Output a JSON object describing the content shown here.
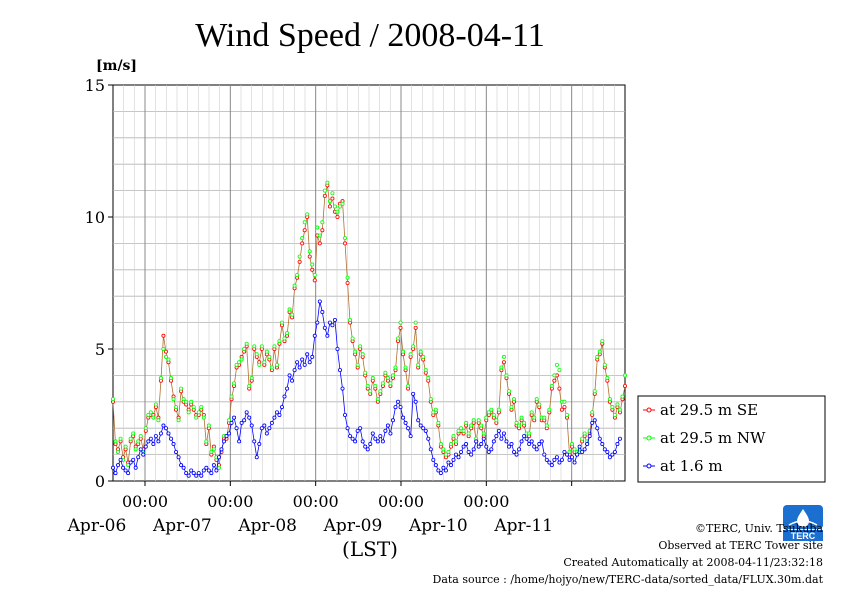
{
  "chart_data": {
    "type": "line",
    "title": "Wind Speed / 2008-04-11",
    "ylabel": "[m/s]",
    "xlabel": "(LST)",
    "ylim": [
      0,
      15
    ],
    "yticks": [
      0,
      5,
      10,
      15
    ],
    "xlim_hours": [
      0,
      144
    ],
    "x_midnight_tick_label": "00:00",
    "day_labels": [
      "Apr-06",
      "Apr-07",
      "Apr-08",
      "Apr-09",
      "Apr-10",
      "Apr-11"
    ],
    "x_unit_note": "x values are hours since start of plotted period (first point shown)",
    "grid": true,
    "legend_position": "right",
    "series": [
      {
        "name": "at 29.5 m SE",
        "color": "#ff0000",
        "values": [
          3.0,
          1.4,
          1.2,
          1.5,
          0.9,
          1.2,
          0.7,
          1.5,
          1.7,
          1.3,
          1.4,
          1.6,
          1.2,
          1.9,
          2.4,
          2.5,
          2.5,
          2.8,
          2.4,
          3.8,
          5.5,
          4.9,
          4.5,
          3.8,
          3.2,
          2.7,
          2.4,
          3.4,
          3.0,
          2.9,
          2.7,
          2.9,
          2.7,
          2.5,
          2.5,
          2.7,
          2.5,
          1.4,
          2.0,
          1.0,
          1.3,
          0.8,
          0.6,
          1.1,
          1.6,
          1.6,
          2.2,
          3.1,
          3.6,
          4.3,
          4.4,
          4.7,
          4.9,
          5.1,
          3.5,
          3.8,
          5.0,
          4.7,
          4.5,
          5.0,
          4.4,
          4.8,
          4.6,
          4.2,
          5.0,
          4.3,
          5.2,
          5.9,
          5.3,
          5.5,
          6.4,
          6.2,
          7.3,
          7.7,
          8.3,
          9.0,
          9.5,
          10.0,
          8.5,
          8.0,
          7.6,
          9.3,
          9.0,
          9.5,
          10.8,
          11.2,
          10.4,
          10.7,
          10.2,
          10.0,
          10.5,
          10.6,
          9.0,
          7.5,
          6.0,
          5.3,
          4.8,
          4.3,
          5.0,
          4.7,
          4.0,
          3.5,
          3.3,
          3.8,
          3.5,
          3.0,
          3.3,
          3.6,
          4.0,
          3.8,
          3.6,
          3.9,
          4.2,
          5.3,
          5.8,
          4.8,
          4.2,
          3.5,
          4.7,
          5.0,
          5.8,
          4.3,
          4.8,
          4.6,
          4.1,
          3.8,
          3.0,
          2.5,
          2.6,
          2.1,
          1.3,
          1.1,
          0.9,
          1.0,
          1.3,
          1.6,
          1.4,
          1.8,
          1.9,
          1.8,
          2.1,
          1.7,
          2.0,
          2.2,
          1.5,
          2.2,
          2.0,
          1.7,
          2.3,
          2.5,
          2.6,
          2.4,
          2.2,
          2.6,
          4.2,
          4.5,
          3.9,
          3.3,
          2.7,
          3.0,
          2.1,
          2.0,
          2.3,
          2.1,
          1.7,
          1.7,
          2.5,
          2.3,
          3.0,
          2.8,
          2.3,
          2.3,
          2.0,
          2.6,
          3.5,
          3.8,
          4.0,
          3.5,
          2.7,
          2.8,
          2.4,
          1.0,
          1.3,
          1.1,
          1.0,
          1.1,
          1.5,
          1.7,
          1.4,
          1.8,
          2.5,
          3.3,
          4.6,
          4.8,
          5.2,
          4.3,
          3.8,
          3.0,
          2.7,
          2.4,
          2.8,
          2.6,
          3.1,
          3.6
        ]
      },
      {
        "name": "at 29.5 m NW",
        "color": "#00ff00",
        "values": [
          3.1,
          1.5,
          1.1,
          1.6,
          0.8,
          1.3,
          0.6,
          1.6,
          1.8,
          1.2,
          1.5,
          1.7,
          1.1,
          2.0,
          2.5,
          2.6,
          2.4,
          2.9,
          2.3,
          3.9,
          5.0,
          4.7,
          4.6,
          3.9,
          3.1,
          2.8,
          2.3,
          3.5,
          3.1,
          3.0,
          2.6,
          3.0,
          2.8,
          2.4,
          2.6,
          2.8,
          2.4,
          1.5,
          2.1,
          1.1,
          1.2,
          0.9,
          0.5,
          1.2,
          1.7,
          1.7,
          2.3,
          3.2,
          3.7,
          4.4,
          4.5,
          4.6,
          5.0,
          5.2,
          3.6,
          3.9,
          5.1,
          4.8,
          4.4,
          5.1,
          4.5,
          4.9,
          4.7,
          4.3,
          5.1,
          4.4,
          5.3,
          6.0,
          5.4,
          5.6,
          6.5,
          6.3,
          7.4,
          7.8,
          8.5,
          9.2,
          9.8,
          10.1,
          8.7,
          8.2,
          7.8,
          9.6,
          9.3,
          9.8,
          11.0,
          11.3,
          10.6,
          10.9,
          10.4,
          10.2,
          10.4,
          10.5,
          9.2,
          7.7,
          6.1,
          5.4,
          4.9,
          4.4,
          5.1,
          4.8,
          4.1,
          3.6,
          3.4,
          3.9,
          3.6,
          3.1,
          3.4,
          3.7,
          4.1,
          3.9,
          3.7,
          4.0,
          4.3,
          5.4,
          6.0,
          4.9,
          4.3,
          3.6,
          4.8,
          5.1,
          6.0,
          4.4,
          4.9,
          4.7,
          4.2,
          3.9,
          3.1,
          2.6,
          2.7,
          2.2,
          1.4,
          1.2,
          1.0,
          1.1,
          1.4,
          1.7,
          1.5,
          1.9,
          2.0,
          1.9,
          2.2,
          1.8,
          2.1,
          2.3,
          1.6,
          2.3,
          2.1,
          1.8,
          2.4,
          2.6,
          2.7,
          2.5,
          2.3,
          2.7,
          4.3,
          4.7,
          4.0,
          3.4,
          2.8,
          3.1,
          2.2,
          2.1,
          2.4,
          2.2,
          1.8,
          1.8,
          2.6,
          2.4,
          3.1,
          2.9,
          2.4,
          2.4,
          2.1,
          2.7,
          3.6,
          4.0,
          4.4,
          4.2,
          3.0,
          3.0,
          2.5,
          1.1,
          1.4,
          1.2,
          1.1,
          1.2,
          1.6,
          1.8,
          1.5,
          1.9,
          2.6,
          3.4,
          4.7,
          4.9,
          5.3,
          4.4,
          3.9,
          3.1,
          2.8,
          2.5,
          2.9,
          2.7,
          3.2,
          4.0
        ]
      },
      {
        "name": "at 1.6 m",
        "color": "#0000ff",
        "values": [
          0.5,
          0.3,
          0.6,
          0.8,
          0.5,
          0.4,
          0.3,
          0.7,
          0.8,
          0.5,
          0.9,
          1.2,
          1.0,
          1.3,
          1.5,
          1.6,
          1.4,
          1.7,
          1.5,
          1.8,
          2.1,
          2.0,
          1.8,
          1.6,
          1.4,
          1.1,
          0.9,
          0.6,
          0.5,
          0.3,
          0.2,
          0.4,
          0.3,
          0.2,
          0.3,
          0.2,
          0.4,
          0.5,
          0.4,
          0.3,
          0.6,
          0.4,
          0.9,
          1.2,
          1.5,
          1.7,
          1.8,
          2.2,
          2.4,
          2.0,
          1.5,
          2.2,
          2.3,
          2.6,
          2.4,
          2.1,
          1.5,
          0.9,
          1.4,
          2.0,
          2.1,
          1.8,
          2.0,
          2.2,
          2.4,
          2.6,
          2.5,
          2.8,
          3.2,
          3.5,
          4.0,
          3.8,
          4.2,
          4.5,
          4.3,
          4.6,
          4.4,
          4.8,
          4.5,
          4.7,
          5.5,
          6.0,
          6.8,
          6.4,
          5.8,
          5.5,
          6.0,
          5.9,
          6.1,
          5.0,
          4.2,
          3.5,
          2.5,
          2.0,
          1.7,
          1.6,
          1.5,
          1.9,
          2.0,
          1.5,
          1.3,
          1.2,
          1.4,
          1.8,
          1.6,
          1.5,
          1.7,
          1.5,
          1.9,
          2.1,
          1.8,
          2.3,
          2.8,
          3.0,
          2.8,
          2.4,
          2.2,
          2.0,
          1.7,
          3.3,
          3.0,
          2.3,
          2.1,
          2.0,
          1.9,
          1.6,
          1.2,
          0.8,
          0.6,
          0.4,
          0.3,
          0.5,
          0.4,
          0.7,
          0.6,
          0.8,
          1.0,
          0.9,
          1.1,
          1.3,
          1.4,
          1.1,
          1.0,
          1.2,
          1.5,
          1.3,
          1.4,
          1.6,
          1.3,
          1.1,
          1.2,
          1.5,
          1.7,
          1.9,
          1.6,
          1.8,
          1.5,
          1.3,
          1.4,
          1.1,
          1.0,
          1.2,
          1.5,
          1.7,
          1.6,
          1.4,
          1.5,
          1.3,
          1.2,
          1.4,
          1.5,
          1.0,
          0.8,
          0.7,
          0.6,
          0.8,
          0.9,
          0.7,
          0.8,
          1.1,
          1.0,
          0.8,
          0.9,
          0.7,
          1.0,
          1.3,
          1.1,
          1.2,
          1.4,
          1.7,
          2.2,
          2.3,
          2.0,
          1.6,
          1.4,
          1.2,
          1.1,
          0.9,
          1.0,
          1.1,
          1.4,
          1.6
        ]
      }
    ]
  },
  "footer": {
    "copyright": "©TERC, Univ. Tsukuba",
    "observed": "Observed at TERC Tower site",
    "created": "Created Automatically at 2008-04-11/23:32:18",
    "source": "Data source : /home/hojyo/new/TERC-data/sorted_data/FLUX.30m.dat"
  },
  "logo": {
    "text": "TERC",
    "color": "#1a6fd0"
  }
}
